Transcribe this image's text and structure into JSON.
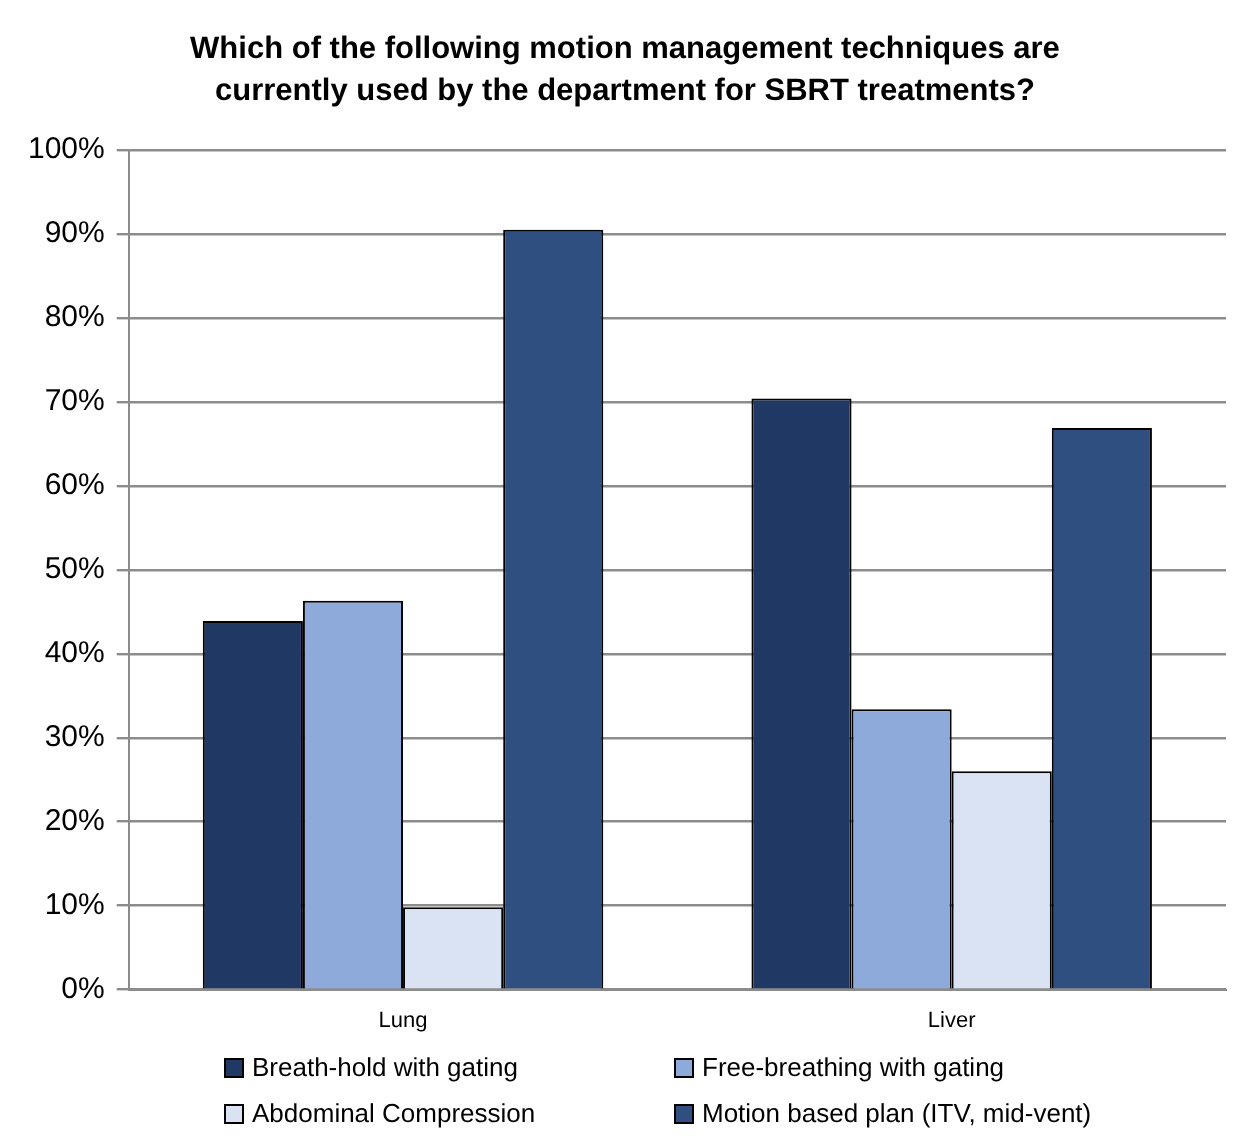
{
  "chart_data": {
    "type": "bar",
    "title": "Which of the following motion management techniques are currently used by the department for SBRT treatments?",
    "categories": [
      "Lung",
      "Liver"
    ],
    "series": [
      {
        "name": "Breath-hold with gating",
        "color": "#203864",
        "values": [
          43.9,
          70.4
        ]
      },
      {
        "name": "Free-breathing with gating",
        "color": "#8eaadb",
        "values": [
          46.3,
          33.4
        ]
      },
      {
        "name": "Abdominal Compression",
        "color": "#dae3f3",
        "values": [
          9.8,
          26.0
        ]
      },
      {
        "name": "Motion based plan (ITV, mid-vent)",
        "color": "#2f4f80",
        "values": [
          90.5,
          66.9
        ]
      }
    ],
    "ylim": [
      0,
      100
    ],
    "yticks": [
      {
        "value": 0,
        "label": "0%"
      },
      {
        "value": 10,
        "label": "10%"
      },
      {
        "value": 20,
        "label": "20%"
      },
      {
        "value": 30,
        "label": "30%"
      },
      {
        "value": 40,
        "label": "40%"
      },
      {
        "value": 50,
        "label": "50%"
      },
      {
        "value": 60,
        "label": "60%"
      },
      {
        "value": 70,
        "label": "70%"
      },
      {
        "value": 80,
        "label": "80%"
      },
      {
        "value": 90,
        "label": "90%"
      },
      {
        "value": 100,
        "label": "100%"
      }
    ],
    "grid": "y",
    "legend": "bottom"
  }
}
